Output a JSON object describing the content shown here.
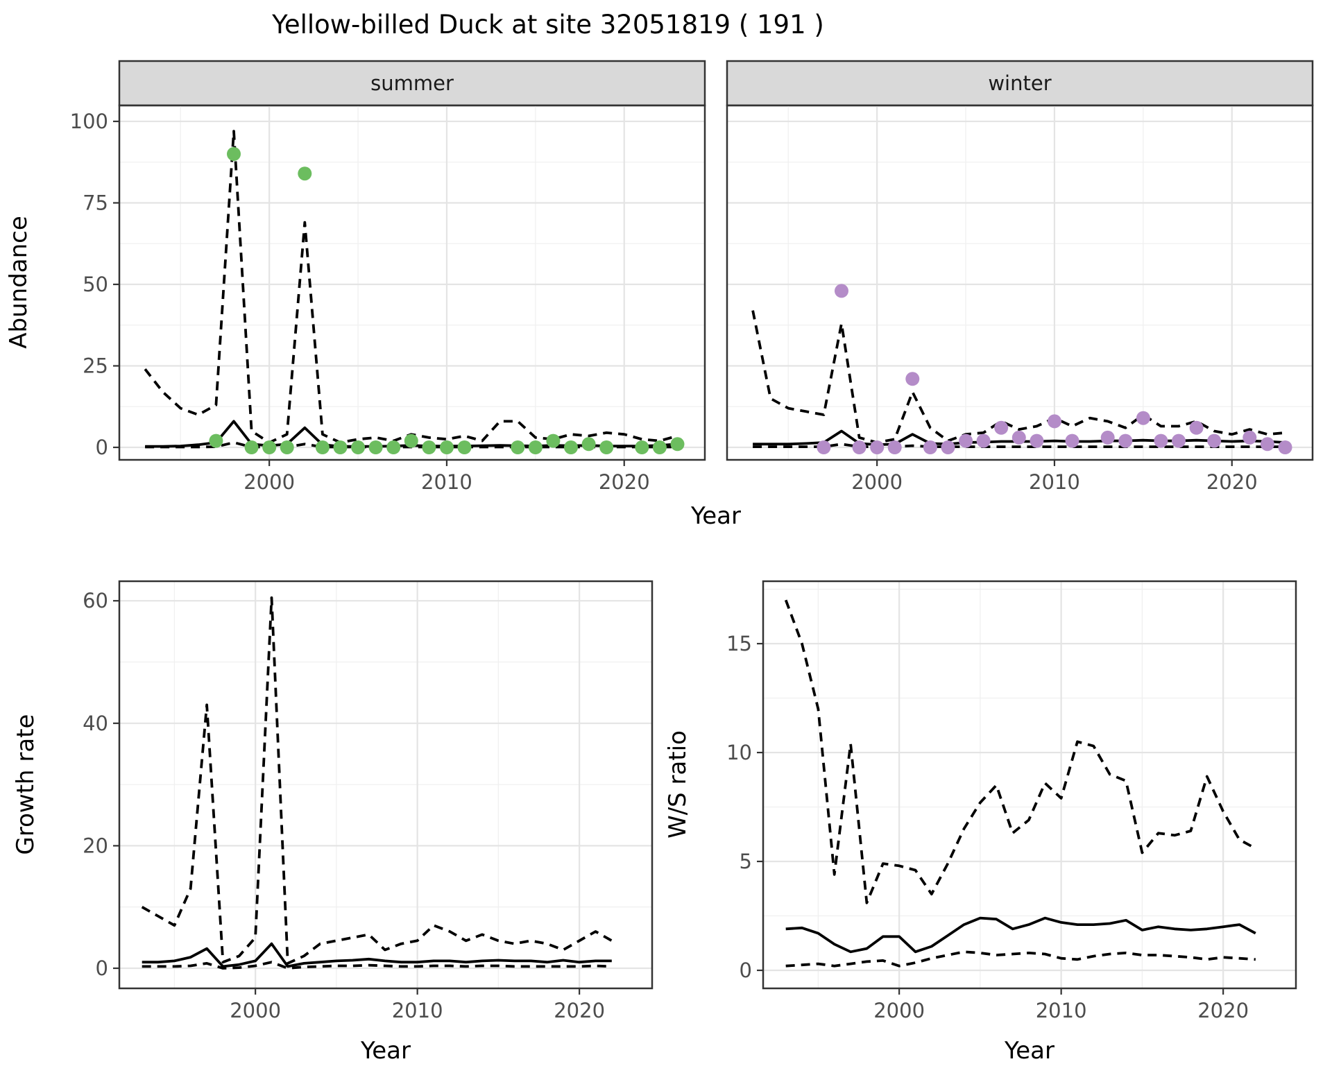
{
  "title": "Yellow-billed Duck at site 32051819 ( 191 )",
  "colors": {
    "summer_dot": "#6cbd5f",
    "winter_dot": "#b48cc8",
    "line": "#000000",
    "panel_border": "#333333",
    "strip_bg": "#d9d9d9",
    "grid_major": "#e4e4e4",
    "grid_minor": "#f0f0f0",
    "tick_label": "#4d4d4d"
  },
  "chart_data": {
    "abundance": {
      "type": "line+scatter",
      "xlabel": "Year",
      "ylabel": "Abundance",
      "xticks": [
        2000,
        2010,
        2020
      ],
      "xminor": [
        1995,
        2005,
        2015
      ],
      "yticks": [
        0,
        25,
        50,
        75,
        100
      ],
      "yminor": [
        12.5,
        37.5,
        62.5,
        87.5
      ],
      "xlim": [
        1991.5,
        2024.5
      ],
      "ylim": [
        -4,
        105
      ],
      "grid": "on",
      "years": [
        1993,
        1994,
        1995,
        1996,
        1997,
        1998,
        1999,
        2000,
        2001,
        2002,
        2003,
        2004,
        2005,
        2006,
        2007,
        2008,
        2009,
        2010,
        2011,
        2012,
        2013,
        2014,
        2015,
        2016,
        2017,
        2018,
        2019,
        2020,
        2021,
        2022,
        2023
      ],
      "facets": [
        {
          "label": "summer",
          "dot_color": "#6cbd5f",
          "observed": [
            null,
            null,
            null,
            null,
            2,
            90,
            0,
            0,
            0,
            84,
            0,
            0,
            0,
            0,
            0,
            2,
            0,
            0,
            0,
            null,
            null,
            0,
            0,
            2,
            0,
            1,
            0,
            null,
            0,
            0,
            1
          ],
          "fit": [
            0.3,
            0.3,
            0.4,
            0.8,
            1.5,
            8,
            1,
            0.5,
            1,
            6,
            0.8,
            0.3,
            0.3,
            0.3,
            0.4,
            0.6,
            0.4,
            0.4,
            0.4,
            0.5,
            0.6,
            0.5,
            0.4,
            0.6,
            0.5,
            0.6,
            0.4,
            0.4,
            0.4,
            0.6,
            1
          ],
          "upper_ci": [
            24,
            17,
            12,
            10,
            13,
            97,
            5,
            1.5,
            4,
            69,
            4,
            1.5,
            2.5,
            3,
            2,
            4,
            3,
            2.5,
            3.5,
            2,
            8,
            8,
            3,
            2.5,
            4,
            3.5,
            4.5,
            4,
            2.5,
            2,
            3.5
          ],
          "lower_ci": [
            0.1,
            0.1,
            0.1,
            0.1,
            0.2,
            1.5,
            0.1,
            0.1,
            0.1,
            1,
            0.1,
            0.1,
            0.1,
            0.1,
            0.1,
            0.1,
            0.1,
            0.1,
            0.1,
            0.1,
            0.1,
            0.1,
            0.1,
            0.1,
            0.1,
            0.1,
            0.1,
            0.1,
            0.1,
            0.1,
            0.1
          ]
        },
        {
          "label": "winter",
          "dot_color": "#b48cc8",
          "observed": [
            null,
            null,
            null,
            null,
            0,
            48,
            0,
            0,
            0,
            21,
            0,
            0,
            2,
            2,
            6,
            3,
            2,
            8,
            2,
            null,
            3,
            2,
            9,
            2,
            2,
            6,
            2,
            null,
            3,
            1,
            0
          ],
          "fit": [
            1,
            1,
            1,
            1.2,
            1.5,
            5,
            1.2,
            0.8,
            1,
            4,
            1.2,
            1,
            1.5,
            1.6,
            1.8,
            1.8,
            1.8,
            2,
            1.8,
            1.8,
            2,
            2,
            2.2,
            2,
            2,
            2.2,
            2,
            1.8,
            2,
            1.8,
            1.5
          ],
          "upper_ci": [
            42,
            15,
            12,
            11,
            10,
            38,
            3,
            1.5,
            2.5,
            17,
            6,
            2,
            4,
            4.5,
            8,
            5.5,
            6.5,
            9,
            6.5,
            9,
            8,
            6,
            10,
            6.5,
            6.5,
            8,
            5,
            4,
            5.5,
            4,
            4.5
          ],
          "lower_ci": [
            0.2,
            0.2,
            0.2,
            0.2,
            0.2,
            1,
            0.2,
            0.2,
            0.2,
            0.5,
            0.2,
            0.2,
            0.2,
            0.2,
            0.2,
            0.2,
            0.2,
            0.2,
            0.2,
            0.2,
            0.2,
            0.2,
            0.2,
            0.2,
            0.2,
            0.2,
            0.2,
            0.2,
            0.2,
            0.2,
            0.2
          ]
        }
      ]
    },
    "growth_rate": {
      "type": "line",
      "xlabel": "Year",
      "ylabel": "Growth rate",
      "xticks": [
        2000,
        2010,
        2020
      ],
      "xminor": [
        1995,
        2005,
        2015
      ],
      "yticks": [
        0,
        20,
        40,
        60
      ],
      "yminor": [
        10,
        30,
        50
      ],
      "xlim": [
        1991.6,
        2024.5
      ],
      "ylim": [
        -3.3,
        63.2
      ],
      "grid": "on",
      "years": [
        1993,
        1994,
        1995,
        1996,
        1997,
        1998,
        1999,
        2000,
        2001,
        2002,
        2003,
        2004,
        2005,
        2006,
        2007,
        2008,
        2009,
        2010,
        2011,
        2012,
        2013,
        2014,
        2015,
        2016,
        2017,
        2018,
        2019,
        2020,
        2021,
        2022
      ],
      "fit": [
        1,
        1,
        1.2,
        1.8,
        3.2,
        0.3,
        0.6,
        1.2,
        4,
        0.3,
        0.8,
        1,
        1.2,
        1.3,
        1.5,
        1.2,
        1,
        1,
        1.2,
        1.2,
        1,
        1.2,
        1.3,
        1.2,
        1.2,
        1,
        1.3,
        1,
        1.2,
        1.2
      ],
      "upper_ci": [
        10,
        8.5,
        7,
        13,
        43,
        1,
        2,
        5,
        60.5,
        0.8,
        2,
        4,
        4.5,
        5,
        5.5,
        3,
        4,
        4.5,
        7,
        6,
        4.5,
        5.5,
        4.5,
        4,
        4.5,
        4,
        3,
        4.5,
        6,
        4.5
      ],
      "lower_ci": [
        0.3,
        0.3,
        0.3,
        0.4,
        0.8,
        0,
        0.1,
        0.4,
        1,
        0,
        0.2,
        0.3,
        0.4,
        0.4,
        0.5,
        0.4,
        0.3,
        0.3,
        0.4,
        0.4,
        0.3,
        0.4,
        0.4,
        0.3,
        0.3,
        0.3,
        0.3,
        0.3,
        0.4,
        0.3
      ]
    },
    "ws_ratio": {
      "type": "line",
      "xlabel": "Year",
      "ylabel": "W/S ratio",
      "xticks": [
        2000,
        2010,
        2020
      ],
      "xminor": [
        1995,
        2005,
        2015
      ],
      "yticks": [
        0,
        5,
        10,
        15
      ],
      "yminor": [
        2.5,
        7.5,
        12.5,
        17.5
      ],
      "xlim": [
        1991.6,
        2024.5
      ],
      "ylim": [
        -0.9,
        17.9
      ],
      "grid": "on",
      "years": [
        1993,
        1994,
        1995,
        1996,
        1997,
        1998,
        1999,
        2000,
        2001,
        2002,
        2003,
        2004,
        2005,
        2006,
        2007,
        2008,
        2009,
        2010,
        2011,
        2012,
        2013,
        2014,
        2015,
        2016,
        2017,
        2018,
        2019,
        2020,
        2021,
        2022
      ],
      "fit": [
        1.9,
        1.95,
        1.7,
        1.2,
        0.85,
        1,
        1.55,
        1.55,
        0.85,
        1.1,
        1.6,
        2.1,
        2.4,
        2.35,
        1.9,
        2.1,
        2.4,
        2.2,
        2.1,
        2.1,
        2.15,
        2.3,
        1.85,
        2,
        1.9,
        1.85,
        1.9,
        2,
        2.1,
        1.7
      ],
      "upper_ci": [
        17,
        15,
        12,
        4.4,
        10.4,
        3.1,
        4.9,
        4.8,
        4.6,
        3.5,
        4.9,
        6.5,
        7.7,
        8.5,
        6.3,
        6.9,
        8.6,
        7.9,
        10.5,
        10.3,
        9,
        8.7,
        5.4,
        6.3,
        6.2,
        6.4,
        8.9,
        7.3,
        6,
        5.6
      ],
      "lower_ci": [
        0.2,
        0.25,
        0.3,
        0.2,
        0.3,
        0.4,
        0.45,
        0.2,
        0.35,
        0.55,
        0.7,
        0.85,
        0.8,
        0.7,
        0.75,
        0.8,
        0.75,
        0.55,
        0.5,
        0.65,
        0.75,
        0.8,
        0.7,
        0.7,
        0.65,
        0.6,
        0.5,
        0.6,
        0.55,
        0.5
      ]
    }
  }
}
